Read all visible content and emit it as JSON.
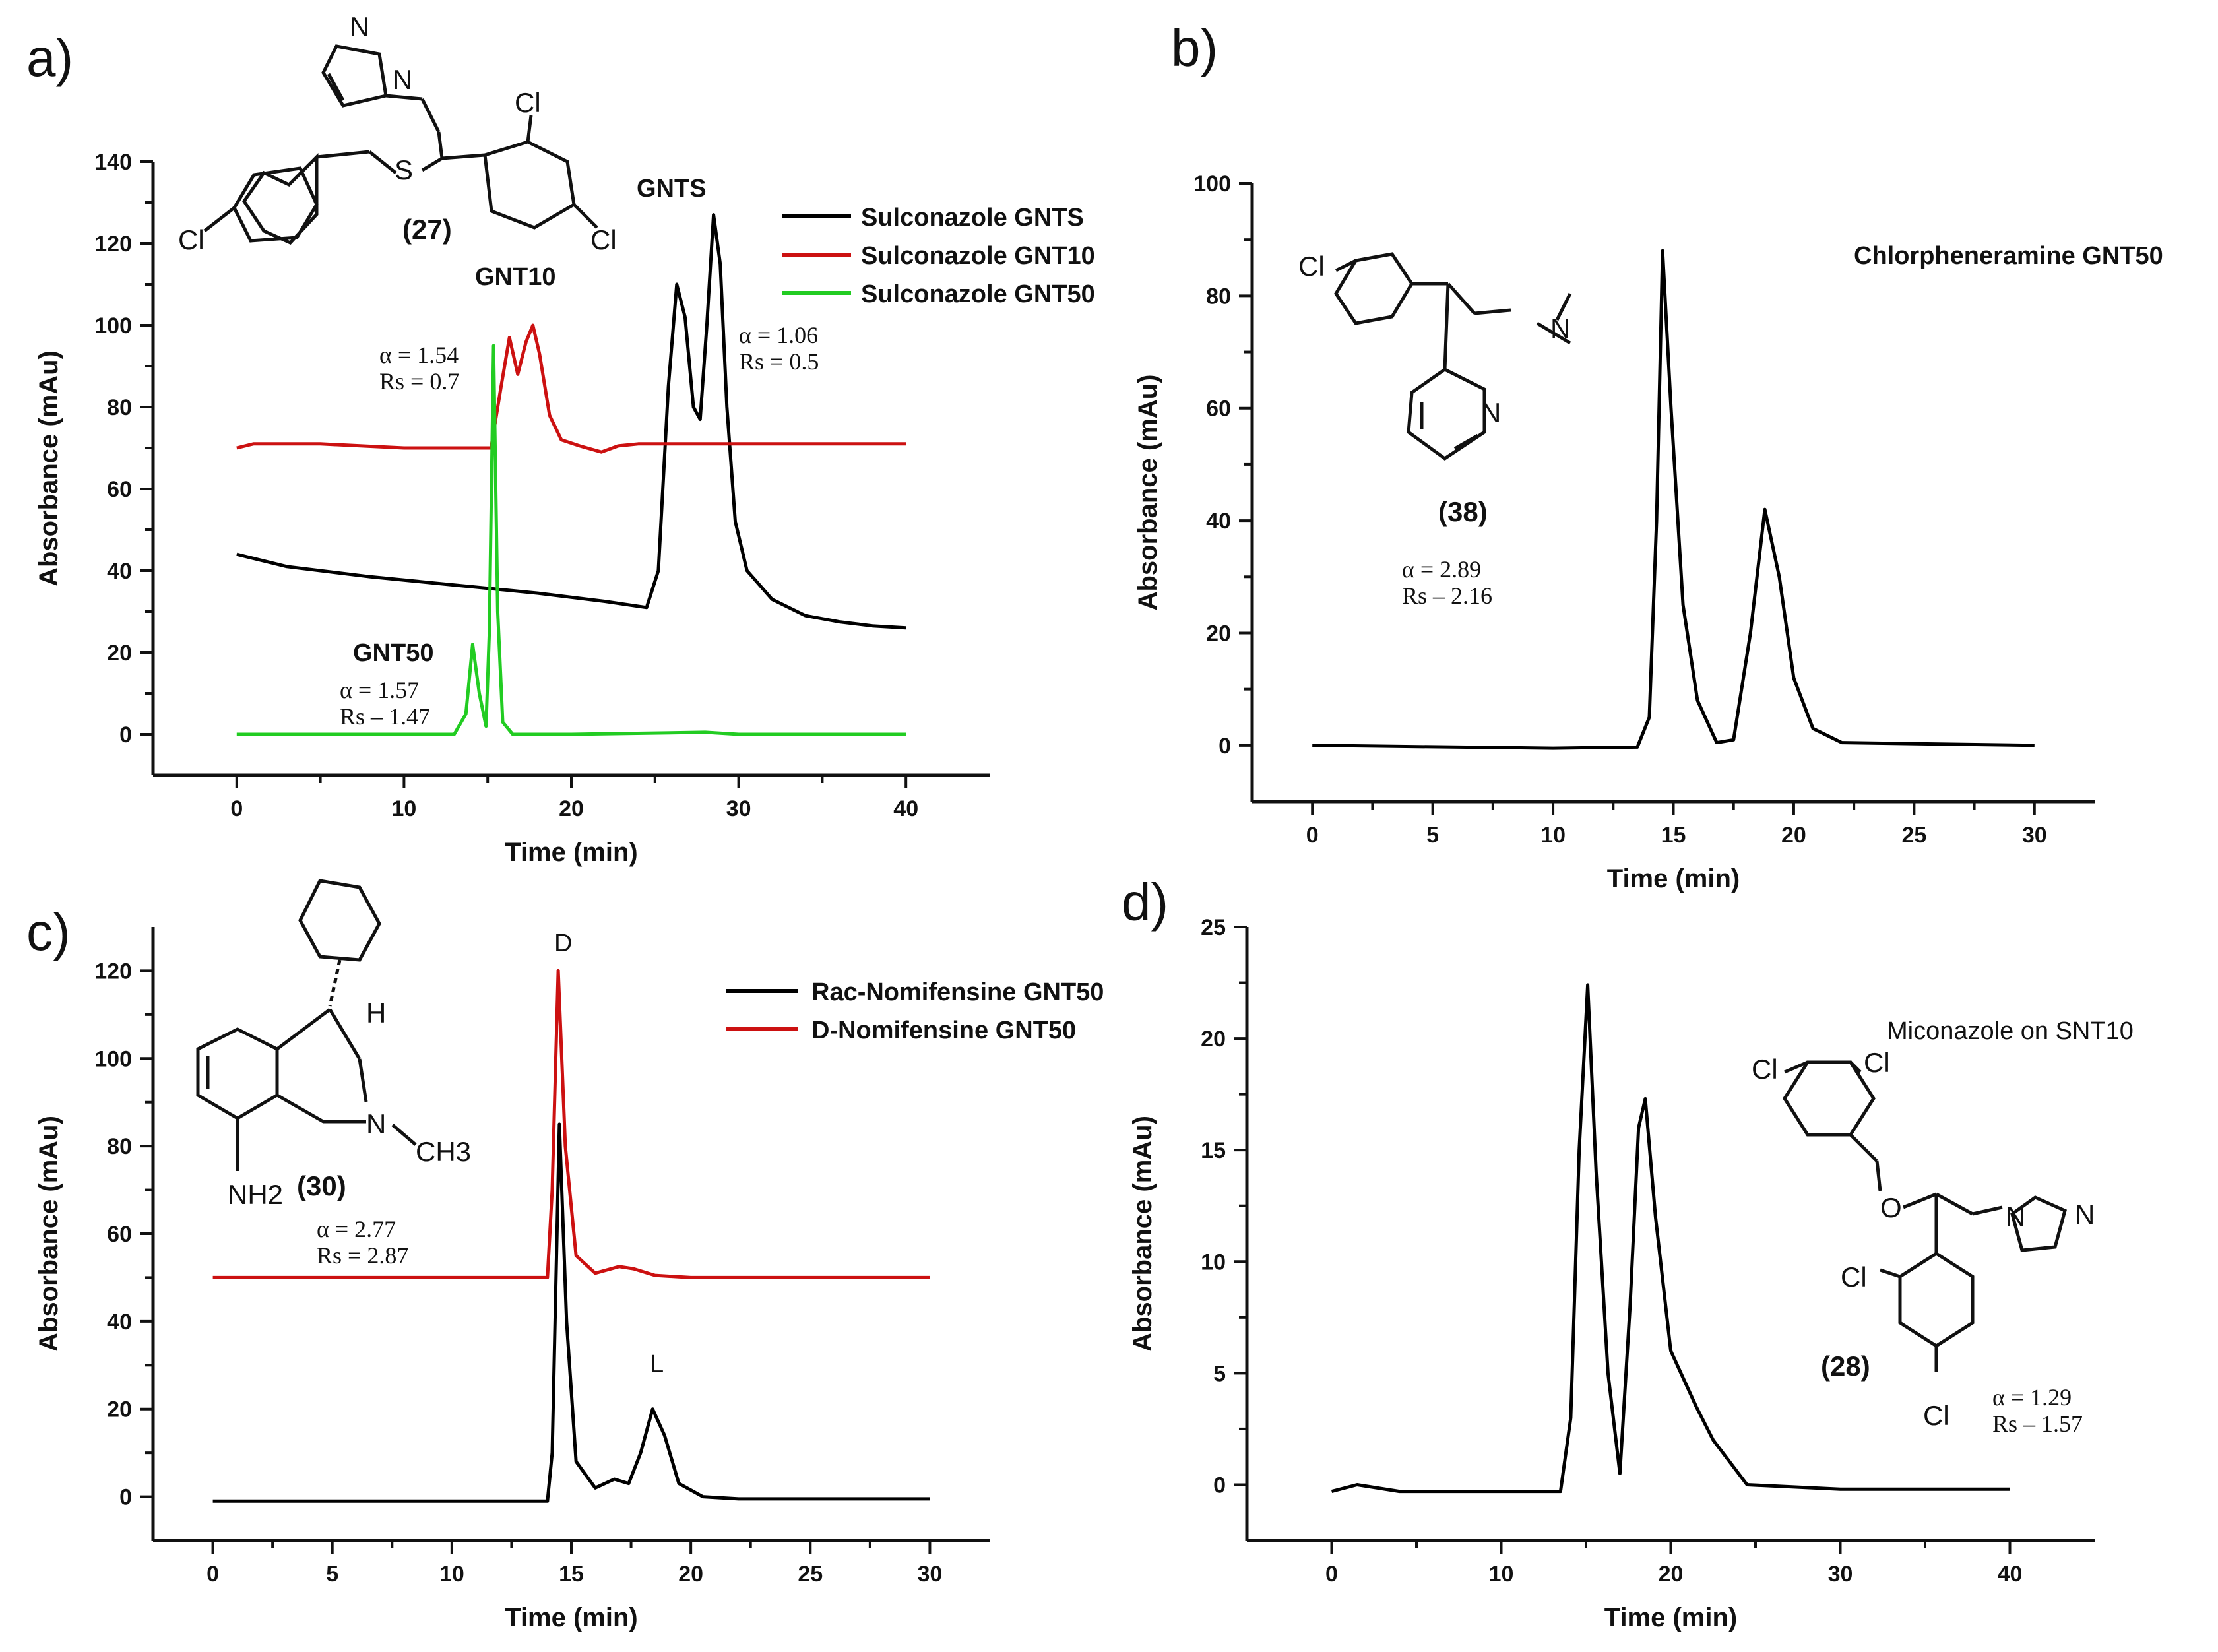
{
  "chart_data": [
    {
      "id": "a",
      "type": "line",
      "panel_label": "a)",
      "xlabel": "Time (min)",
      "ylabel": "Absorbance (mAu)",
      "xlim": [
        -5,
        45
      ],
      "ylim": [
        -10,
        140
      ],
      "xticks": [
        0,
        10,
        20,
        30,
        40
      ],
      "yticks": [
        0,
        20,
        40,
        60,
        80,
        100,
        120,
        140
      ],
      "legend": [
        "Sulconazole GNTS",
        "Sulconazole GNT10",
        "Sulconazole GNT50"
      ],
      "compound": {
        "label": "(27)",
        "name": "Sulconazole",
        "atoms": [
          "N",
          "N",
          "Cl",
          "Cl",
          "Cl",
          "S"
        ]
      },
      "peak_labels": [
        "GNTS",
        "GNT10",
        "GNT50"
      ],
      "annotations": [
        {
          "alpha": "α = 1.06",
          "rs": "Rs = 0.5"
        },
        {
          "alpha": "α = 1.54",
          "rs": "Rs = 0.7"
        },
        {
          "alpha": "α = 1.57",
          "rs": "Rs – 1.47"
        }
      ],
      "series": [
        {
          "name": "Sulconazole GNTS",
          "color": "#000000",
          "points": [
            [
              0,
              44
            ],
            [
              3,
              41
            ],
            [
              8,
              38.5
            ],
            [
              13,
              36.5
            ],
            [
              18,
              34.5
            ],
            [
              22,
              32.5
            ],
            [
              24.5,
              31
            ],
            [
              25.2,
              40
            ],
            [
              25.8,
              85
            ],
            [
              26.3,
              110
            ],
            [
              26.8,
              102
            ],
            [
              27.3,
              80
            ],
            [
              27.7,
              77
            ],
            [
              28.1,
              100
            ],
            [
              28.5,
              127
            ],
            [
              28.9,
              115
            ],
            [
              29.3,
              80
            ],
            [
              29.8,
              52
            ],
            [
              30.5,
              40
            ],
            [
              32,
              33
            ],
            [
              34,
              29
            ],
            [
              36,
              27.5
            ],
            [
              38,
              26.5
            ],
            [
              40,
              26
            ]
          ]
        },
        {
          "name": "Sulconazole GNT10",
          "color": "#cc1111",
          "points": [
            [
              0,
              70
            ],
            [
              1,
              71
            ],
            [
              5,
              71
            ],
            [
              10,
              70
            ],
            [
              14,
              70
            ],
            [
              15.2,
              70
            ],
            [
              15.8,
              85
            ],
            [
              16.3,
              97
            ],
            [
              16.8,
              88
            ],
            [
              17.3,
              96
            ],
            [
              17.7,
              100
            ],
            [
              18.1,
              93
            ],
            [
              18.7,
              78
            ],
            [
              19.4,
              72
            ],
            [
              20.5,
              70.5
            ],
            [
              21.8,
              69
            ],
            [
              22.8,
              70.5
            ],
            [
              24,
              71
            ],
            [
              40,
              71
            ]
          ]
        },
        {
          "name": "Sulconazole GNT50",
          "color": "#22cc22",
          "points": [
            [
              0,
              0
            ],
            [
              10,
              0
            ],
            [
              13,
              0
            ],
            [
              13.7,
              5
            ],
            [
              14.1,
              22
            ],
            [
              14.5,
              10
            ],
            [
              14.9,
              2
            ],
            [
              15.1,
              25
            ],
            [
              15.35,
              95
            ],
            [
              15.6,
              30
            ],
            [
              15.9,
              3
            ],
            [
              16.5,
              0
            ],
            [
              20,
              0
            ],
            [
              28,
              0.5
            ],
            [
              30,
              0
            ],
            [
              40,
              0
            ]
          ]
        }
      ]
    },
    {
      "id": "b",
      "type": "line",
      "panel_label": "b)",
      "xlabel": "Time (min)",
      "ylabel": "Absorbance (mAu)",
      "xlim": [
        -2.5,
        32.5
      ],
      "ylim": [
        -10,
        100
      ],
      "xticks": [
        0,
        5,
        10,
        15,
        20,
        25,
        30
      ],
      "yticks": [
        0,
        20,
        40,
        60,
        80,
        100
      ],
      "legend": [
        "Chlorpheneramine GNT50"
      ],
      "compound": {
        "label": "(38)",
        "name": "Chlorpheneramine",
        "atoms": [
          "Cl",
          "N",
          "N"
        ]
      },
      "annotations": [
        {
          "alpha": "α = 2.89",
          "rs": "Rs – 2.16"
        }
      ],
      "series": [
        {
          "name": "Chlorpheneramine GNT50",
          "color": "#000000",
          "points": [
            [
              0,
              0
            ],
            [
              10,
              -0.5
            ],
            [
              13.5,
              -0.3
            ],
            [
              14,
              5
            ],
            [
              14.3,
              40
            ],
            [
              14.55,
              88
            ],
            [
              14.9,
              60
            ],
            [
              15.4,
              25
            ],
            [
              16,
              8
            ],
            [
              16.8,
              0.5
            ],
            [
              17.5,
              1
            ],
            [
              18.2,
              20
            ],
            [
              18.8,
              42
            ],
            [
              19.4,
              30
            ],
            [
              20,
              12
            ],
            [
              20.8,
              3
            ],
            [
              22,
              0.5
            ],
            [
              30,
              0
            ]
          ]
        }
      ]
    },
    {
      "id": "c",
      "type": "line",
      "panel_label": "c)",
      "xlabel": "Time (min)",
      "ylabel": "Absorbance (mAu)",
      "xlim": [
        -2.5,
        32.5
      ],
      "ylim": [
        -10,
        130
      ],
      "xticks": [
        0,
        5,
        10,
        15,
        20,
        25,
        30
      ],
      "yticks": [
        0,
        20,
        40,
        60,
        80,
        100,
        120
      ],
      "legend": [
        "Rac-Nomifensine GNT50",
        "D-Nomifensine GNT50"
      ],
      "compound": {
        "label": "(30)",
        "name": "Nomifensine",
        "atoms": [
          "H",
          "N",
          "CH3",
          "NH2"
        ]
      },
      "peak_labels": [
        "D",
        "L"
      ],
      "annotations": [
        {
          "alpha": "α = 2.77",
          "rs": "Rs = 2.87"
        }
      ],
      "series": [
        {
          "name": "Rac-Nomifensine GNT50",
          "color": "#000000",
          "points": [
            [
              0,
              -1
            ],
            [
              10,
              -1
            ],
            [
              14,
              -1
            ],
            [
              14.2,
              10
            ],
            [
              14.5,
              85
            ],
            [
              14.8,
              40
            ],
            [
              15.2,
              8
            ],
            [
              16,
              2
            ],
            [
              16.8,
              4
            ],
            [
              17.4,
              3
            ],
            [
              17.9,
              10
            ],
            [
              18.4,
              20
            ],
            [
              18.9,
              14
            ],
            [
              19.5,
              3
            ],
            [
              20.5,
              0
            ],
            [
              22,
              -0.5
            ],
            [
              30,
              -0.5
            ]
          ]
        },
        {
          "name": "D-Nomifensine GNT50",
          "color": "#cc1111",
          "points": [
            [
              0,
              50
            ],
            [
              10,
              50
            ],
            [
              14,
              50
            ],
            [
              14.2,
              70
            ],
            [
              14.45,
              120
            ],
            [
              14.75,
              80
            ],
            [
              15.2,
              55
            ],
            [
              16,
              51
            ],
            [
              17,
              52.5
            ],
            [
              17.6,
              52
            ],
            [
              18.5,
              50.5
            ],
            [
              20,
              50
            ],
            [
              30,
              50
            ]
          ]
        }
      ]
    },
    {
      "id": "d",
      "type": "line",
      "panel_label": "d)",
      "xlabel": "Time (min)",
      "ylabel": "Absorbance (mAu)",
      "xlim": [
        -5,
        45
      ],
      "ylim": [
        -2.5,
        25
      ],
      "xticks": [
        0,
        10,
        20,
        30,
        40
      ],
      "yticks": [
        0,
        5,
        10,
        15,
        20,
        25
      ],
      "legend": [
        "Miconazole on SNT10"
      ],
      "compound": {
        "label": "(28)",
        "name": "Miconazole",
        "atoms": [
          "Cl",
          "Cl",
          "Cl",
          "Cl",
          "O",
          "N",
          "N"
        ]
      },
      "annotations": [
        {
          "alpha": "α = 1.29",
          "rs": "Rs – 1.57"
        }
      ],
      "series": [
        {
          "name": "Miconazole on SNT10",
          "color": "#000000",
          "points": [
            [
              0,
              -0.3
            ],
            [
              1.5,
              0
            ],
            [
              4,
              -0.3
            ],
            [
              10,
              -0.3
            ],
            [
              13.5,
              -0.3
            ],
            [
              14.1,
              3
            ],
            [
              14.6,
              15
            ],
            [
              15.1,
              22.4
            ],
            [
              15.6,
              14
            ],
            [
              16.3,
              5
            ],
            [
              17,
              0.5
            ],
            [
              17.6,
              8
            ],
            [
              18.1,
              16
            ],
            [
              18.5,
              17.3
            ],
            [
              19.1,
              12
            ],
            [
              20,
              6
            ],
            [
              21.5,
              3.5
            ],
            [
              22.5,
              2
            ],
            [
              24.5,
              0
            ],
            [
              30,
              -0.2
            ],
            [
              40,
              -0.2
            ]
          ]
        }
      ]
    }
  ]
}
